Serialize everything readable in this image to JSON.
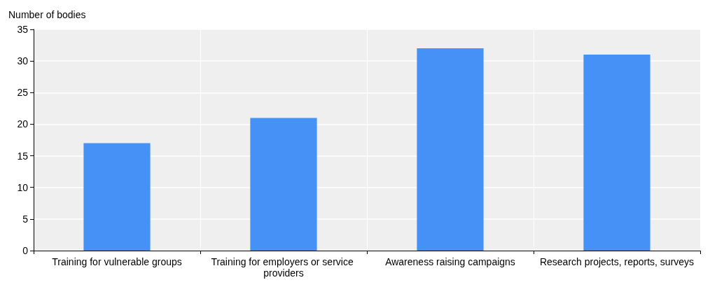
{
  "chart_data": {
    "type": "bar",
    "ylabel": "Number of bodies",
    "categories": [
      "Training for vulnerable groups",
      "Training for employers or service providers",
      "Awareness raising campaigns",
      "Research projects, reports, surveys"
    ],
    "values": [
      17,
      21,
      32,
      31
    ],
    "color": "#4691f6",
    "ylim": [
      0,
      35
    ],
    "yticks": [
      0,
      5,
      10,
      15,
      20,
      25,
      30,
      35
    ],
    "grid": true
  }
}
